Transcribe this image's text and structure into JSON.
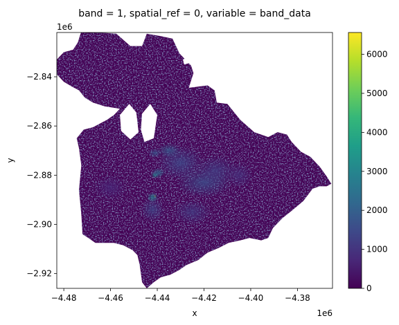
{
  "chart_data": {
    "type": "heatmap",
    "title": "band = 1, spatial_ref = 0, variable = band_data",
    "xlabel": "x",
    "ylabel": "y",
    "x_offset_label": "1e6",
    "y_offset_label": "1e6",
    "xlim": [
      -4.483,
      -4.365
    ],
    "ylim": [
      -2.926,
      -2.822
    ],
    "x_ticks": [
      {
        "value": -4.48,
        "label": "−4.48"
      },
      {
        "value": -4.46,
        "label": "−4.46"
      },
      {
        "value": -4.44,
        "label": "−4.44"
      },
      {
        "value": -4.42,
        "label": "−4.42"
      },
      {
        "value": -4.4,
        "label": "−4.40"
      },
      {
        "value": -4.38,
        "label": "−4.38"
      }
    ],
    "y_ticks": [
      {
        "value": -2.84,
        "label": "−2.84"
      },
      {
        "value": -2.86,
        "label": "−2.86"
      },
      {
        "value": -2.88,
        "label": "−2.88"
      },
      {
        "value": -2.9,
        "label": "−2.90"
      },
      {
        "value": -2.92,
        "label": "−2.92"
      }
    ],
    "colorbar": {
      "colormap": "viridis",
      "vmin": 0,
      "vmax": 6560,
      "ticks": [
        {
          "value": 0,
          "label": "0"
        },
        {
          "value": 1000,
          "label": "1000"
        },
        {
          "value": 2000,
          "label": "2000"
        },
        {
          "value": 3000,
          "label": "3000"
        },
        {
          "value": 4000,
          "label": "4000"
        },
        {
          "value": 5000,
          "label": "5000"
        },
        {
          "value": 6000,
          "label": "6000"
        }
      ]
    },
    "colormap_stops": [
      "#440154",
      "#482878",
      "#3e4989",
      "#31688e",
      "#26828e",
      "#1f9e89",
      "#35b779",
      "#6ece58",
      "#b5de2b",
      "#fde725"
    ],
    "background_value": 0,
    "region_outline": [
      [
        -4.4725,
        -2.8215
      ],
      [
        -4.4575,
        -2.8225
      ],
      [
        -4.4515,
        -2.8275
      ],
      [
        -4.4465,
        -2.8275
      ],
      [
        -4.4445,
        -2.8225
      ],
      [
        -4.4385,
        -2.8235
      ],
      [
        -4.4335,
        -2.8245
      ],
      [
        -4.4305,
        -2.8305
      ],
      [
        -4.4255,
        -2.8355
      ],
      [
        -4.4245,
        -2.8385
      ],
      [
        -4.4255,
        -2.8415
      ],
      [
        -4.4265,
        -2.8445
      ],
      [
        -4.4185,
        -2.8435
      ],
      [
        -4.4155,
        -2.8455
      ],
      [
        -4.4145,
        -2.8505
      ],
      [
        -4.41,
        -2.851
      ],
      [
        -4.4045,
        -2.8575
      ],
      [
        -4.3985,
        -2.8625
      ],
      [
        -4.3925,
        -2.8645
      ],
      [
        -4.3885,
        -2.8625
      ],
      [
        -4.3845,
        -2.8635
      ],
      [
        -4.3825,
        -2.8665
      ],
      [
        -4.3785,
        -2.8705
      ],
      [
        -4.3745,
        -2.8725
      ],
      [
        -4.3705,
        -2.8765
      ],
      [
        -4.3675,
        -2.8805
      ],
      [
        -4.3655,
        -2.8835
      ],
      [
        -4.3675,
        -2.8845
      ],
      [
        -4.3705,
        -2.8845
      ],
      [
        -4.3735,
        -2.8855
      ],
      [
        -4.3775,
        -2.8905
      ],
      [
        -4.3825,
        -2.8945
      ],
      [
        -4.3865,
        -2.8975
      ],
      [
        -4.3905,
        -2.9015
      ],
      [
        -4.3925,
        -2.9055
      ],
      [
        -4.3955,
        -2.9065
      ],
      [
        -4.4005,
        -2.9055
      ],
      [
        -4.4045,
        -2.9065
      ],
      [
        -4.4095,
        -2.9075
      ],
      [
        -4.4135,
        -2.9095
      ],
      [
        -4.4185,
        -2.9115
      ],
      [
        -4.4225,
        -2.9145
      ],
      [
        -4.4275,
        -2.9165
      ],
      [
        -4.4305,
        -2.9185
      ],
      [
        -4.4345,
        -2.9205
      ],
      [
        -4.4385,
        -2.9215
      ],
      [
        -4.4415,
        -2.9235
      ],
      [
        -4.4445,
        -2.926
      ],
      [
        -4.4465,
        -2.9235
      ],
      [
        -4.4475,
        -2.9165
      ],
      [
        -4.4485,
        -2.9125
      ],
      [
        -4.4505,
        -2.9105
      ],
      [
        -4.4545,
        -2.9085
      ],
      [
        -4.4585,
        -2.9075
      ],
      [
        -4.4625,
        -2.9075
      ],
      [
        -4.4665,
        -2.9075
      ],
      [
        -4.4695,
        -2.9055
      ],
      [
        -4.472,
        -2.904
      ],
      [
        -4.4725,
        -2.896
      ],
      [
        -4.4735,
        -2.886
      ],
      [
        -4.4725,
        -2.876
      ],
      [
        -4.4735,
        -2.869
      ],
      [
        -4.4745,
        -2.865
      ],
      [
        -4.4715,
        -2.8615
      ],
      [
        -4.4675,
        -2.8605
      ],
      [
        -4.4615,
        -2.8575
      ],
      [
        -4.4585,
        -2.8555
      ],
      [
        -4.456,
        -2.853
      ],
      [
        -4.4625,
        -2.852
      ],
      [
        -4.4675,
        -2.8505
      ],
      [
        -4.471,
        -2.8485
      ],
      [
        -4.4735,
        -2.8455
      ],
      [
        -4.4765,
        -2.844
      ],
      [
        -4.48,
        -2.842
      ],
      [
        -4.483,
        -2.839
      ],
      [
        -4.483,
        -2.833
      ],
      [
        -4.48,
        -2.83
      ],
      [
        -4.476,
        -2.829
      ],
      [
        -4.474,
        -2.826
      ]
    ],
    "holes": [
      [
        [
          -4.456,
          -2.8555
        ],
        [
          -4.452,
          -2.851
        ],
        [
          -4.449,
          -2.8545
        ],
        [
          -4.448,
          -2.8625
        ],
        [
          -4.4515,
          -2.8655
        ],
        [
          -4.4555,
          -2.862
        ]
      ],
      [
        [
          -4.4465,
          -2.855
        ],
        [
          -4.443,
          -2.851
        ],
        [
          -4.44,
          -2.8555
        ],
        [
          -4.4415,
          -2.865
        ],
        [
          -4.4455,
          -2.8665
        ],
        [
          -4.447,
          -2.8615
        ]
      ],
      [
        [
          -4.429,
          -2.833
        ],
        [
          -4.427,
          -2.832
        ],
        [
          -4.4265,
          -2.8345
        ],
        [
          -4.4285,
          -2.835
        ]
      ]
    ],
    "hotspots": [
      {
        "x": -4.441,
        "y": -2.88,
        "value": 3000,
        "rx": 0.0018,
        "ry": 0.0012
      },
      {
        "x": -4.4395,
        "y": -2.879,
        "value": 2200,
        "rx": 0.003,
        "ry": 0.002
      },
      {
        "x": -4.441,
        "y": -2.8885,
        "value": 6500,
        "rx": 0.0004,
        "ry": 0.0004
      },
      {
        "x": -4.435,
        "y": -2.87,
        "value": 1800,
        "rx": 0.005,
        "ry": 0.003
      },
      {
        "x": -4.42,
        "y": -2.883,
        "value": 1500,
        "rx": 0.012,
        "ry": 0.006
      },
      {
        "x": -4.43,
        "y": -2.875,
        "value": 1400,
        "rx": 0.01,
        "ry": 0.007
      },
      {
        "x": -4.415,
        "y": -2.878,
        "value": 1200,
        "rx": 0.009,
        "ry": 0.006
      },
      {
        "x": -4.442,
        "y": -2.894,
        "value": 1300,
        "rx": 0.005,
        "ry": 0.005
      },
      {
        "x": -4.425,
        "y": -2.895,
        "value": 1100,
        "rx": 0.008,
        "ry": 0.005
      },
      {
        "x": -4.442,
        "y": -2.889,
        "value": 2800,
        "rx": 0.0025,
        "ry": 0.002
      },
      {
        "x": -4.46,
        "y": -2.885,
        "value": 700,
        "rx": 0.007,
        "ry": 0.005
      },
      {
        "x": -4.405,
        "y": -2.88,
        "value": 900,
        "rx": 0.006,
        "ry": 0.005
      },
      {
        "x": -4.441,
        "y": -2.871,
        "value": 1700,
        "rx": 0.003,
        "ry": 0.002
      }
    ]
  }
}
